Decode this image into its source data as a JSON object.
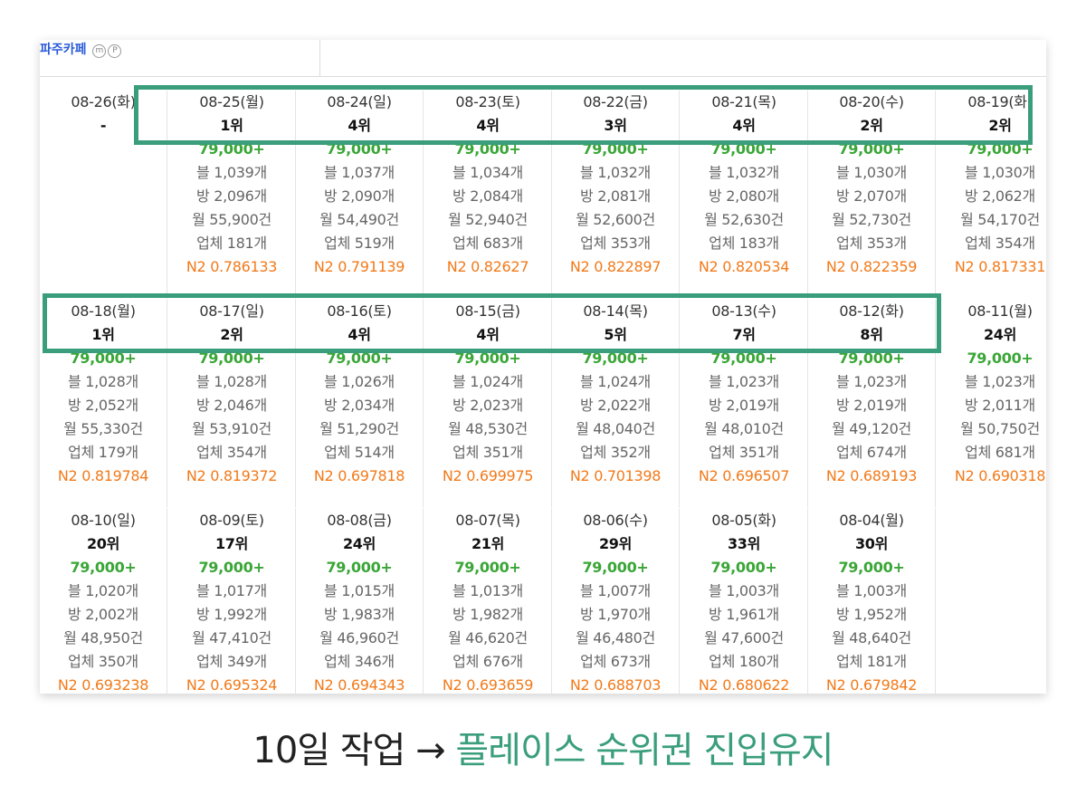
{
  "header": {
    "cafe_name": "파주카페",
    "badge_m": "m",
    "badge_p": "P"
  },
  "rows": [
    [
      {
        "date": "08-26(화)",
        "rank": "-"
      },
      {
        "date": "08-25(월)",
        "rank": "1위",
        "price": "79,000+",
        "blog": "블 1,039개",
        "room": "방 2,096개",
        "month": "월 55,900건",
        "vendor": "업체 181개",
        "n2": "N2 0.786133"
      },
      {
        "date": "08-24(일)",
        "rank": "4위",
        "price": "79,000+",
        "blog": "블 1,037개",
        "room": "방 2,090개",
        "month": "월 54,490건",
        "vendor": "업체 519개",
        "n2": "N2 0.791139"
      },
      {
        "date": "08-23(토)",
        "rank": "4위",
        "price": "79,000+",
        "blog": "블 1,034개",
        "room": "방 2,084개",
        "month": "월 52,940건",
        "vendor": "업체 683개",
        "n2": "N2 0.82627"
      },
      {
        "date": "08-22(금)",
        "rank": "3위",
        "price": "79,000+",
        "blog": "블 1,032개",
        "room": "방 2,081개",
        "month": "월 52,600건",
        "vendor": "업체 353개",
        "n2": "N2 0.822897"
      },
      {
        "date": "08-21(목)",
        "rank": "4위",
        "price": "79,000+",
        "blog": "블 1,032개",
        "room": "방 2,080개",
        "month": "월 52,630건",
        "vendor": "업체 183개",
        "n2": "N2 0.820534"
      },
      {
        "date": "08-20(수)",
        "rank": "2위",
        "price": "79,000+",
        "blog": "블 1,030개",
        "room": "방 2,070개",
        "month": "월 52,730건",
        "vendor": "업체 353개",
        "n2": "N2 0.822359"
      },
      {
        "date": "08-19(화)",
        "rank": "2위",
        "price": "79,000+",
        "blog": "블 1,030개",
        "room": "방 2,062개",
        "month": "월 54,170건",
        "vendor": "업체 354개",
        "n2": "N2 0.817331"
      }
    ],
    [
      {
        "date": "08-18(월)",
        "rank": "1위",
        "price": "79,000+",
        "blog": "블 1,028개",
        "room": "방 2,052개",
        "month": "월 55,330건",
        "vendor": "업체 179개",
        "n2": "N2 0.819784"
      },
      {
        "date": "08-17(일)",
        "rank": "2위",
        "price": "79,000+",
        "blog": "블 1,028개",
        "room": "방 2,046개",
        "month": "월 53,910건",
        "vendor": "업체 354개",
        "n2": "N2 0.819372"
      },
      {
        "date": "08-16(토)",
        "rank": "4위",
        "price": "79,000+",
        "blog": "블 1,026개",
        "room": "방 2,034개",
        "month": "월 51,290건",
        "vendor": "업체 514개",
        "n2": "N2 0.697818"
      },
      {
        "date": "08-15(금)",
        "rank": "4위",
        "price": "79,000+",
        "blog": "블 1,024개",
        "room": "방 2,023개",
        "month": "월 48,530건",
        "vendor": "업체 351개",
        "n2": "N2 0.699975"
      },
      {
        "date": "08-14(목)",
        "rank": "5위",
        "price": "79,000+",
        "blog": "블 1,024개",
        "room": "방 2,022개",
        "month": "월 48,040건",
        "vendor": "업체 352개",
        "n2": "N2 0.701398"
      },
      {
        "date": "08-13(수)",
        "rank": "7위",
        "price": "79,000+",
        "blog": "블 1,023개",
        "room": "방 2,019개",
        "month": "월 48,010건",
        "vendor": "업체 351개",
        "n2": "N2 0.696507"
      },
      {
        "date": "08-12(화)",
        "rank": "8위",
        "price": "79,000+",
        "blog": "블 1,023개",
        "room": "방 2,019개",
        "month": "월 49,120건",
        "vendor": "업체 674개",
        "n2": "N2 0.689193"
      },
      {
        "date": "08-11(월)",
        "rank": "24위",
        "price": "79,000+",
        "blog": "블 1,023개",
        "room": "방 2,011개",
        "month": "월 50,750건",
        "vendor": "업체 681개",
        "n2": "N2 0.690318"
      }
    ],
    [
      {
        "date": "08-10(일)",
        "rank": "20위",
        "price": "79,000+",
        "blog": "블 1,020개",
        "room": "방 2,002개",
        "month": "월 48,950건",
        "vendor": "업체 350개",
        "n2": "N2 0.693238"
      },
      {
        "date": "08-09(토)",
        "rank": "17위",
        "price": "79,000+",
        "blog": "블 1,017개",
        "room": "방 1,992개",
        "month": "월 47,410건",
        "vendor": "업체 349개",
        "n2": "N2 0.695324"
      },
      {
        "date": "08-08(금)",
        "rank": "24위",
        "price": "79,000+",
        "blog": "블 1,015개",
        "room": "방 1,983개",
        "month": "월 46,960건",
        "vendor": "업체 346개",
        "n2": "N2 0.694343"
      },
      {
        "date": "08-07(목)",
        "rank": "21위",
        "price": "79,000+",
        "blog": "블 1,013개",
        "room": "방 1,982개",
        "month": "월 46,620건",
        "vendor": "업체 676개",
        "n2": "N2 0.693659"
      },
      {
        "date": "08-06(수)",
        "rank": "29위",
        "price": "79,000+",
        "blog": "블 1,007개",
        "room": "방 1,970개",
        "month": "월 46,480건",
        "vendor": "업체 673개",
        "n2": "N2 0.688703"
      },
      {
        "date": "08-05(화)",
        "rank": "33위",
        "price": "79,000+",
        "blog": "블 1,003개",
        "room": "방 1,961개",
        "month": "월 47,600건",
        "vendor": "업체 180개",
        "n2": "N2 0.680622"
      },
      {
        "date": "08-04(월)",
        "rank": "30위",
        "price": "79,000+",
        "blog": "블 1,003개",
        "room": "방 1,952개",
        "month": "월 48,640건",
        "vendor": "업체 181개",
        "n2": "N2 0.679842"
      }
    ]
  ],
  "caption": {
    "lead": "10일 작업 →",
    "accent": "플레이스 순위권 진입유지"
  },
  "colors": {
    "highlight": "#3a9e7c",
    "price": "#3aa637",
    "n2": "#f27a1a",
    "link": "#2a5bd7"
  }
}
